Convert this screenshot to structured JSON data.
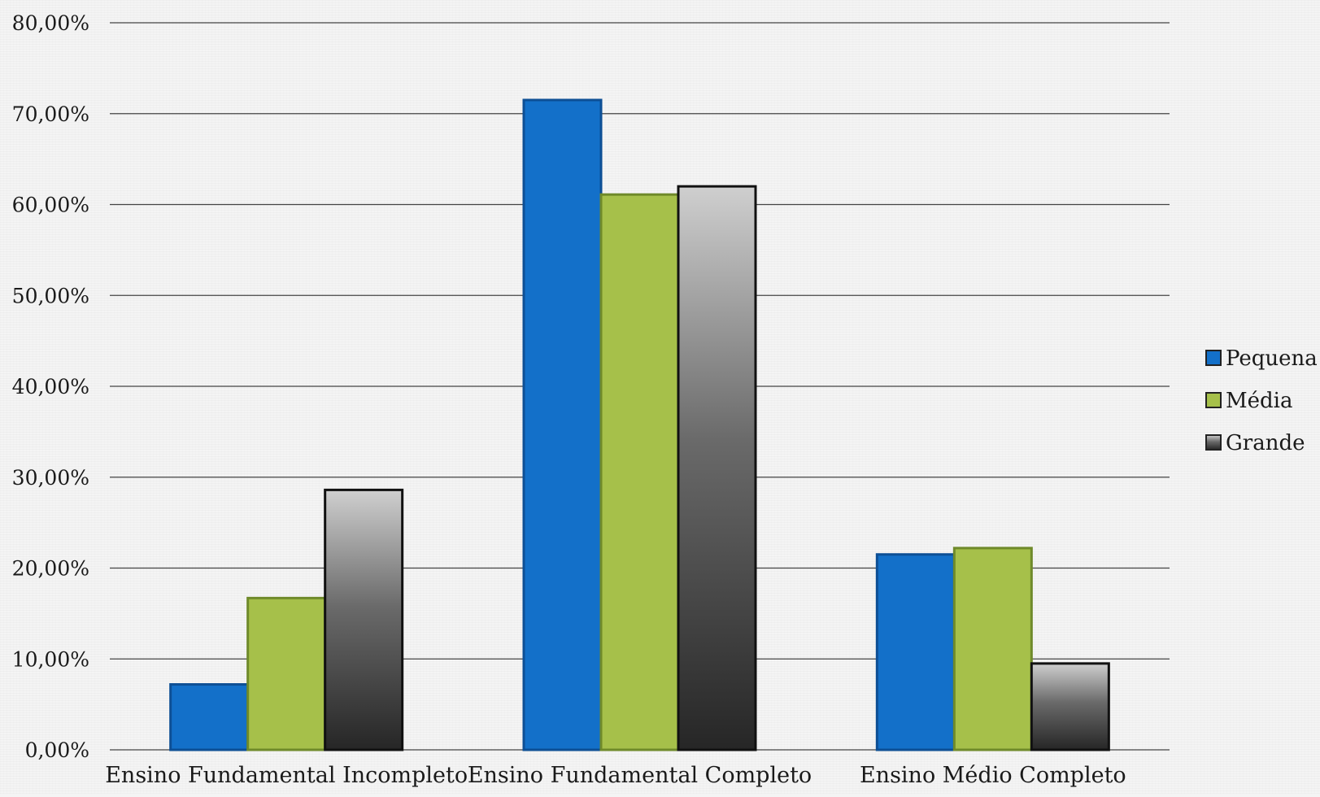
{
  "chart_data": {
    "type": "bar",
    "title": "",
    "xlabel": "",
    "ylabel": "",
    "categories": [
      "Ensino Fundamental Incompleto",
      "Ensino Fundamental Completo",
      "Ensino Médio Completo"
    ],
    "series": [
      {
        "name": "Pequena",
        "values": [
          7.2,
          71.5,
          21.5
        ],
        "color": "#1370c9"
      },
      {
        "name": "Média",
        "values": [
          16.7,
          61.1,
          22.2
        ],
        "color": "#a6c04a"
      },
      {
        "name": "Grande",
        "values": [
          28.6,
          62.0,
          9.5
        ],
        "color": "#555555"
      }
    ],
    "ylim": [
      0,
      80
    ],
    "yticks": [
      0,
      10,
      20,
      30,
      40,
      50,
      60,
      70,
      80
    ],
    "ytick_labels": [
      "0,00%",
      "10,00%",
      "20,00%",
      "30,00%",
      "40,00%",
      "50,00%",
      "60,00%",
      "70,00%",
      "80,00%"
    ],
    "grid": true,
    "legend_position": "right"
  }
}
